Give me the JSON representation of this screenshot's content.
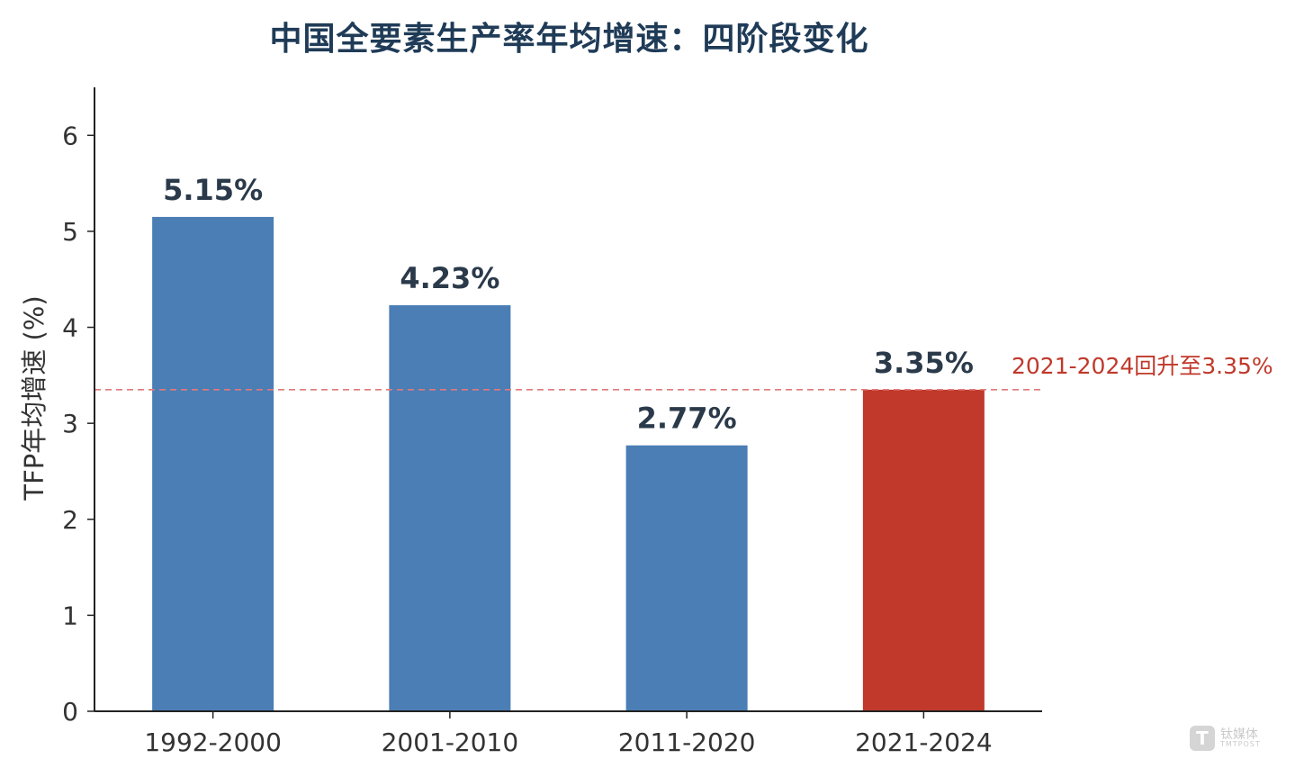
{
  "chart_data": {
    "type": "bar",
    "title": "中国全要素生产率年均增速：四阶段变化",
    "xlabel": "",
    "ylabel": "TFP年均增速 (%)",
    "ylim": [
      0,
      6.5
    ],
    "yticks": [
      0,
      1,
      2,
      3,
      4,
      5,
      6
    ],
    "categories": [
      "1992-2000",
      "2001-2010",
      "2011-2020",
      "2021-2024"
    ],
    "values": [
      5.15,
      4.23,
      2.77,
      3.35
    ],
    "data_labels": [
      "5.15%",
      "4.23%",
      "2.77%",
      "3.35%"
    ],
    "bar_colors": [
      "#4a7eb5",
      "#4a7eb5",
      "#4a7eb5",
      "#c0392b"
    ],
    "reference_line": {
      "value": 3.35,
      "color": "#e07a7a",
      "style": "dashed",
      "label": "2021-2024回升至3.35%"
    },
    "grid": false,
    "legend": "none"
  },
  "colors": {
    "title": "#1f3b57",
    "axis": "#222222",
    "annotation": "#c0392b"
  },
  "watermark": {
    "logo_glyph": "T",
    "name": "钛媒体",
    "sub": "TMTPOST"
  }
}
